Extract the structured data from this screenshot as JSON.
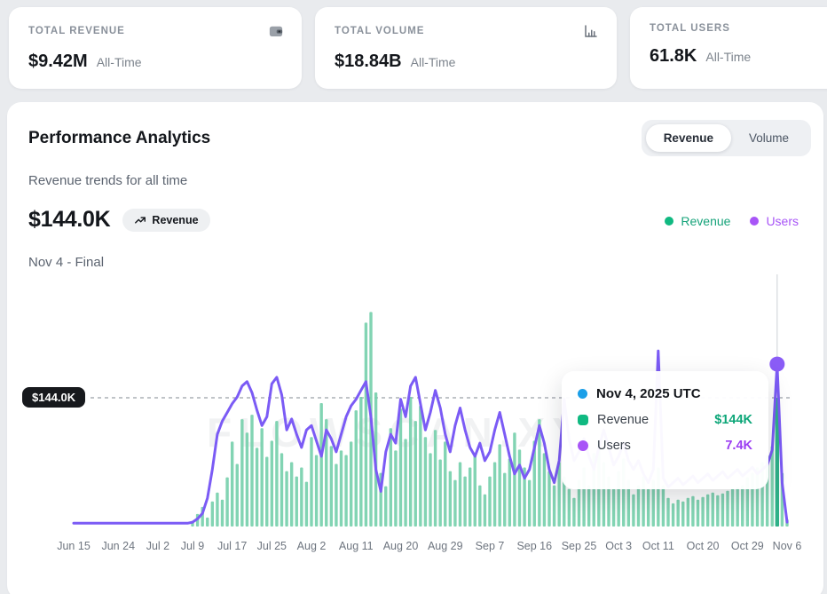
{
  "stat_cards": [
    {
      "label": "TOTAL REVENUE",
      "value": "$9.42M",
      "period": "All-Time",
      "icon": "wallet-icon"
    },
    {
      "label": "TOTAL VOLUME",
      "value": "$18.84B",
      "period": "All-Time",
      "icon": "bar-chart-icon"
    },
    {
      "label": "TOTAL USERS",
      "value": "61.8K",
      "period": "All-Time",
      "icon": ""
    }
  ],
  "analytics": {
    "title": "Performance Analytics",
    "subtitle": "Revenue trends for all time",
    "toggle": {
      "options": [
        "Revenue",
        "Volume"
      ],
      "active": "Revenue"
    },
    "headline_value": "$144.0K",
    "headline_badge": "Revenue",
    "period_label": "Nov 4 - Final",
    "threshold_label": "$144.0K",
    "watermark": "FLOWSCAN.XYZ",
    "legend": [
      {
        "label": "Revenue",
        "color": "#10b981",
        "text_color": "#16a37a"
      },
      {
        "label": "Users",
        "color": "#a855f7",
        "text_color": "#a855f7"
      }
    ],
    "tooltip": {
      "date": "Nov 4, 2025 UTC",
      "date_dot_color": "#1b9fe8",
      "rows": [
        {
          "label": "Revenue",
          "value": "$144K",
          "color": "#10b981",
          "value_color": "#0ca678"
        },
        {
          "label": "Users",
          "value": "7.4K",
          "color": "#a855f7",
          "value_color": "#9b3df2"
        }
      ]
    }
  },
  "chart_data": {
    "type": "bar+line",
    "title": "Revenue trends for all time",
    "days_total": 145,
    "date_range": [
      "Jun 15",
      "Nov 6"
    ],
    "x_ticks": [
      {
        "label": "Jun 15",
        "day": 0
      },
      {
        "label": "Jun 24",
        "day": 9
      },
      {
        "label": "Jul 2",
        "day": 17
      },
      {
        "label": "Jul 9",
        "day": 24
      },
      {
        "label": "Jul 17",
        "day": 32
      },
      {
        "label": "Jul 25",
        "day": 40
      },
      {
        "label": "Aug 2",
        "day": 48
      },
      {
        "label": "Aug 11",
        "day": 57
      },
      {
        "label": "Aug 20",
        "day": 66
      },
      {
        "label": "Aug 29",
        "day": 75
      },
      {
        "label": "Sep 7",
        "day": 84
      },
      {
        "label": "Sep 16",
        "day": 93
      },
      {
        "label": "Sep 25",
        "day": 102
      },
      {
        "label": "Oct 3",
        "day": 110
      },
      {
        "label": "Oct 11",
        "day": 118
      },
      {
        "label": "Oct 20",
        "day": 127
      },
      {
        "label": "Oct 29",
        "day": 136
      },
      {
        "label": "Nov 6",
        "day": 144
      }
    ],
    "series": [
      {
        "name": "Revenue",
        "type": "bar",
        "unit": "K USD",
        "color": "#74cfab",
        "values": [
          0,
          0,
          0,
          0,
          0,
          0,
          0,
          0,
          0,
          0,
          0,
          0,
          0,
          0,
          0,
          0,
          0,
          0,
          0,
          0,
          0,
          0,
          0,
          0,
          5,
          14,
          22,
          10,
          28,
          38,
          30,
          55,
          95,
          70,
          120,
          105,
          125,
          88,
          110,
          78,
          96,
          118,
          82,
          62,
          72,
          56,
          66,
          50,
          100,
          80,
          138,
          120,
          90,
          70,
          85,
          80,
          95,
          130,
          145,
          228,
          240,
          150,
          60,
          45,
          110,
          85,
          132,
          98,
          145,
          118,
          135,
          100,
          82,
          108,
          75,
          95,
          62,
          52,
          72,
          56,
          66,
          80,
          46,
          36,
          56,
          72,
          92,
          60,
          76,
          105,
          86,
          66,
          52,
          96,
          120,
          82,
          62,
          46,
          72,
          56,
          42,
          32,
          52,
          66,
          46,
          82,
          96,
          72,
          56,
          42,
          62,
          76,
          52,
          36,
          46,
          56,
          42,
          52,
          66,
          46,
          32,
          26,
          30,
          28,
          32,
          34,
          30,
          33,
          36,
          38,
          35,
          37,
          40,
          42,
          44,
          46,
          55,
          60,
          66,
          72,
          80,
          90,
          144,
          60,
          8
        ]
      },
      {
        "name": "Users",
        "type": "line",
        "unit": "K",
        "color": "#7b5bf5",
        "values": [
          0.15,
          0.15,
          0.15,
          0.15,
          0.15,
          0.15,
          0.15,
          0.15,
          0.15,
          0.15,
          0.15,
          0.15,
          0.15,
          0.15,
          0.15,
          0.15,
          0.15,
          0.15,
          0.15,
          0.15,
          0.15,
          0.15,
          0.15,
          0.15,
          0.2,
          0.35,
          0.6,
          1.3,
          2.6,
          4.2,
          4.8,
          5.2,
          5.6,
          5.9,
          6.4,
          6.6,
          6.1,
          5.3,
          4.6,
          5.0,
          6.5,
          6.8,
          6.0,
          4.4,
          4.9,
          4.2,
          3.6,
          4.4,
          4.6,
          3.9,
          3.2,
          4.4,
          4.0,
          3.4,
          4.2,
          5.0,
          5.5,
          5.8,
          6.2,
          6.6,
          5.0,
          2.6,
          1.6,
          3.4,
          4.2,
          3.8,
          5.8,
          5.0,
          6.4,
          6.8,
          5.6,
          4.4,
          5.2,
          6.2,
          5.4,
          4.2,
          3.4,
          4.6,
          5.4,
          4.4,
          3.6,
          3.2,
          3.8,
          3.0,
          3.4,
          4.4,
          5.2,
          4.2,
          3.2,
          2.4,
          2.8,
          2.2,
          2.6,
          3.6,
          4.6,
          3.8,
          2.6,
          2.0,
          3.0,
          5.8,
          4.0,
          3.0,
          3.4,
          4.0,
          3.2,
          2.6,
          3.6,
          4.4,
          3.6,
          2.8,
          3.2,
          3.8,
          3.0,
          2.6,
          3.0,
          2.4,
          2.0,
          2.6,
          8.0,
          2.2,
          1.8,
          2.0,
          2.2,
          1.9,
          2.1,
          2.3,
          2.0,
          2.2,
          2.4,
          2.1,
          2.3,
          2.5,
          2.2,
          2.4,
          2.6,
          2.3,
          2.5,
          2.7,
          2.4,
          2.6,
          2.8,
          3.5,
          7.4,
          2.0,
          0.2
        ]
      }
    ],
    "highlight_day_index": 142,
    "highlight_bar_color": "#2eb188",
    "marker_color": "#8a5cf6",
    "threshold_revenue_k": 144,
    "ylim_revenue_k": [
      0,
      286
    ],
    "ylim_users_k": [
      0,
      11.65
    ],
    "grid": false,
    "legend_position": "top-right"
  }
}
